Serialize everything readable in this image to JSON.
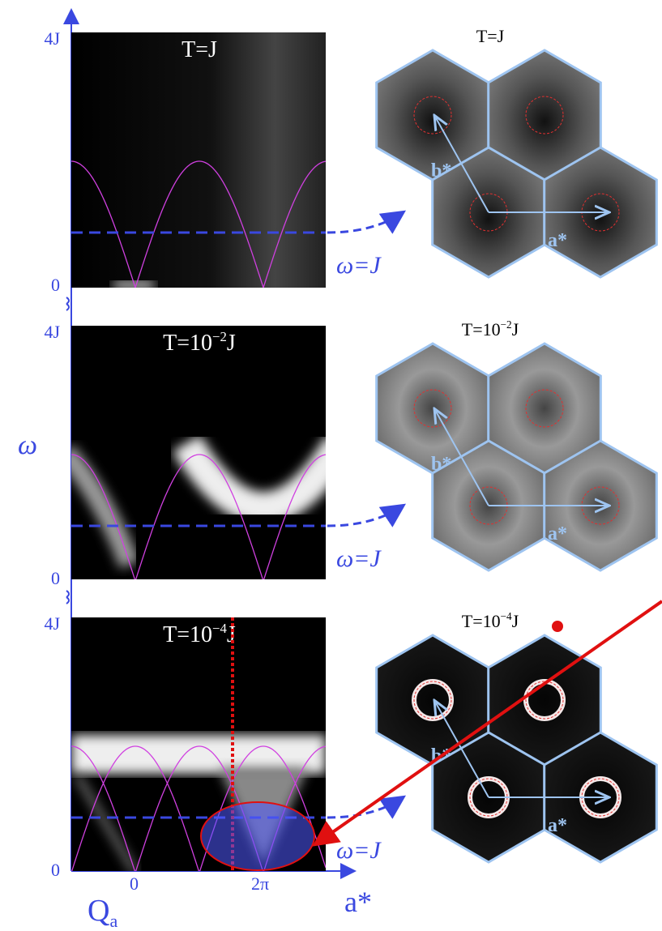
{
  "y_axis_label": "ω",
  "x_axis": {
    "label": "Q",
    "label_sub": "a",
    "ticks": [
      "0",
      "2π"
    ],
    "arrow_label": "a*"
  },
  "panels": [
    {
      "title": {
        "base": "T=J"
      },
      "map_title": {
        "base": "T=J"
      },
      "y_top": "4J",
      "y_bottom": "0",
      "cut_label": "ω=J",
      "hex_labels": [
        "b*",
        "a*"
      ]
    },
    {
      "title": {
        "base": "T=10",
        "sup": "−2",
        "end": "J"
      },
      "map_title": {
        "base": "T=10",
        "sup": "−2",
        "end": "J"
      },
      "y_top": "4J",
      "y_bottom": "0",
      "cut_label": "ω=J",
      "hex_labels": [
        "b*",
        "a*"
      ]
    },
    {
      "title": {
        "base": "T=10",
        "sup": "−4",
        "end": "J"
      },
      "map_title": {
        "base": "T=10",
        "sup": "−4",
        "end": "J"
      },
      "y_top": "4J",
      "y_bottom": "0",
      "cut_label": "ω=J",
      "hex_labels": [
        "b*",
        "a*"
      ]
    }
  ]
}
